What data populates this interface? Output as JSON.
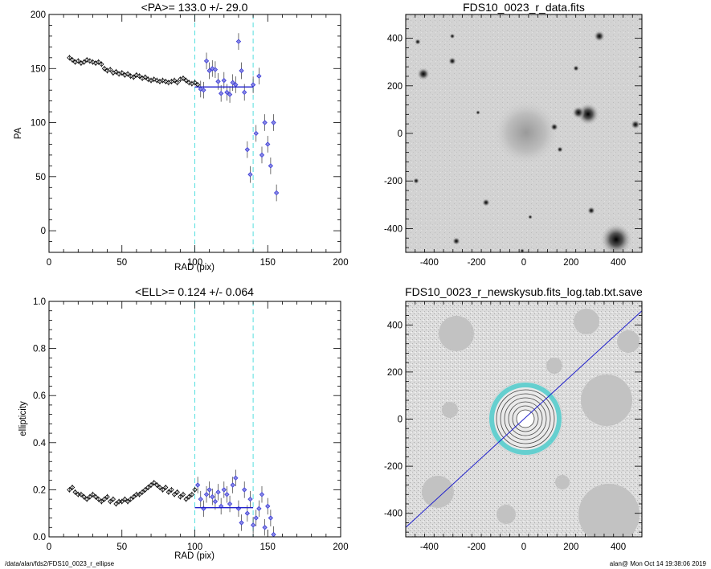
{
  "chart_data": [
    {
      "type": "scatter",
      "title": "<PA>= 133.0 +/-  29.0",
      "xlabel": "RAD (pix)",
      "ylabel": "PA",
      "xlim": [
        0,
        200
      ],
      "ylim": [
        -20,
        200
      ],
      "xticks": [
        "0",
        "50",
        "100",
        "150",
        "200"
      ],
      "yticks": [
        "0",
        "50",
        "100",
        "150",
        "200"
      ],
      "vlines": [
        100,
        140
      ],
      "mean_line": {
        "value": 133.0,
        "x": [
          100,
          140
        ]
      },
      "series": [
        {
          "x": [
            14,
            16,
            18,
            20,
            22,
            24,
            26,
            28,
            30,
            32,
            34,
            36,
            38,
            40,
            42,
            44,
            46,
            48,
            50,
            52,
            54,
            56,
            58,
            60,
            62,
            64,
            66,
            68,
            70,
            72,
            74,
            76,
            78,
            80,
            82,
            84,
            86,
            88,
            90,
            92,
            94,
            96,
            98,
            100,
            102
          ],
          "y": [
            160,
            158,
            156,
            157,
            155,
            156,
            158,
            157,
            156,
            155,
            156,
            154,
            150,
            148,
            149,
            146,
            147,
            145,
            146,
            144,
            145,
            143,
            142,
            144,
            143,
            141,
            142,
            140,
            139,
            140,
            139,
            138,
            139,
            138,
            137,
            138,
            139,
            137,
            140,
            141,
            139,
            137,
            136,
            137,
            135
          ]
        },
        {
          "x": [
            104,
            106,
            108,
            110,
            112,
            114,
            116,
            118,
            120,
            122,
            124,
            126,
            128,
            130,
            132,
            134,
            136,
            138,
            140,
            142,
            144,
            146,
            148,
            150,
            152,
            154,
            156
          ],
          "y": [
            131,
            130,
            157,
            148,
            150,
            149,
            138,
            127,
            139,
            128,
            126,
            137,
            135,
            175,
            148,
            128,
            75,
            52,
            135,
            90,
            143,
            70,
            100,
            80,
            60,
            100,
            35
          ]
        }
      ]
    },
    {
      "type": "heatmap",
      "title": "FDS10_0023_r_data.fits",
      "xlim": [
        -500,
        500
      ],
      "ylim": [
        -500,
        500
      ],
      "xticks": [
        "-400",
        "-200",
        "0",
        "200",
        "400"
      ],
      "yticks": [
        "-400",
        "-200",
        "0",
        "200",
        "400"
      ]
    },
    {
      "type": "scatter",
      "title": "<ELL>= 0.124 +/-  0.064",
      "xlabel": "RAD (pix)",
      "ylabel": "ellipticity",
      "xlim": [
        0,
        200
      ],
      "ylim": [
        0,
        1.0
      ],
      "xticks": [
        "0",
        "50",
        "100",
        "150",
        "200"
      ],
      "yticks": [
        "0.0",
        "0.2",
        "0.4",
        "0.6",
        "0.8",
        "1.0"
      ],
      "vlines": [
        100,
        140
      ],
      "mean_line": {
        "value": 0.124,
        "x": [
          100,
          140
        ]
      },
      "series": [
        {
          "x": [
            14,
            16,
            18,
            20,
            22,
            24,
            26,
            28,
            30,
            32,
            34,
            36,
            38,
            40,
            42,
            44,
            46,
            48,
            50,
            52,
            54,
            56,
            58,
            60,
            62,
            64,
            66,
            68,
            70,
            72,
            74,
            76,
            78,
            80,
            82,
            84,
            86,
            88,
            90,
            92,
            94,
            96,
            98,
            100
          ],
          "y": [
            0.2,
            0.21,
            0.19,
            0.18,
            0.18,
            0.17,
            0.16,
            0.17,
            0.18,
            0.17,
            0.16,
            0.15,
            0.16,
            0.17,
            0.15,
            0.16,
            0.14,
            0.15,
            0.15,
            0.16,
            0.15,
            0.16,
            0.17,
            0.18,
            0.18,
            0.19,
            0.2,
            0.21,
            0.22,
            0.23,
            0.22,
            0.21,
            0.2,
            0.21,
            0.19,
            0.2,
            0.18,
            0.19,
            0.17,
            0.18,
            0.16,
            0.17,
            0.18,
            0.2
          ]
        },
        {
          "x": [
            102,
            104,
            106,
            108,
            110,
            112,
            114,
            116,
            118,
            120,
            122,
            124,
            126,
            128,
            130,
            132,
            134,
            136,
            138,
            140,
            142,
            144,
            146,
            148,
            150,
            152,
            154
          ],
          "y": [
            0.22,
            0.16,
            0.12,
            0.18,
            0.2,
            0.17,
            0.15,
            0.19,
            0.13,
            0.2,
            0.18,
            0.14,
            0.22,
            0.25,
            0.12,
            0.06,
            0.2,
            0.1,
            0.16,
            0.05,
            0.08,
            0.12,
            0.18,
            0.04,
            0.13,
            0.08,
            0.01
          ]
        }
      ]
    },
    {
      "type": "heatmap",
      "title": "FDS10_0023_r_newskysub.fits_log.tab.txt.save",
      "xlim": [
        -500,
        500
      ],
      "ylim": [
        -500,
        500
      ],
      "xticks": [
        "-400",
        "-200",
        "0",
        "200",
        "400"
      ],
      "yticks": [
        "-400",
        "-200",
        "0",
        "200",
        "400"
      ]
    }
  ],
  "footer": {
    "left": "/data/alan/fds2/FDS10_0023_r_ellipse",
    "right": "alan@  Mon Oct 14 19:38:06 2019"
  },
  "colors": {
    "axis": "#000000",
    "marker": "#000000",
    "highlight": "#3b3bd6",
    "vline": "#55e0e0",
    "meanline": "#2222cc",
    "contour": "#44c8c8"
  }
}
